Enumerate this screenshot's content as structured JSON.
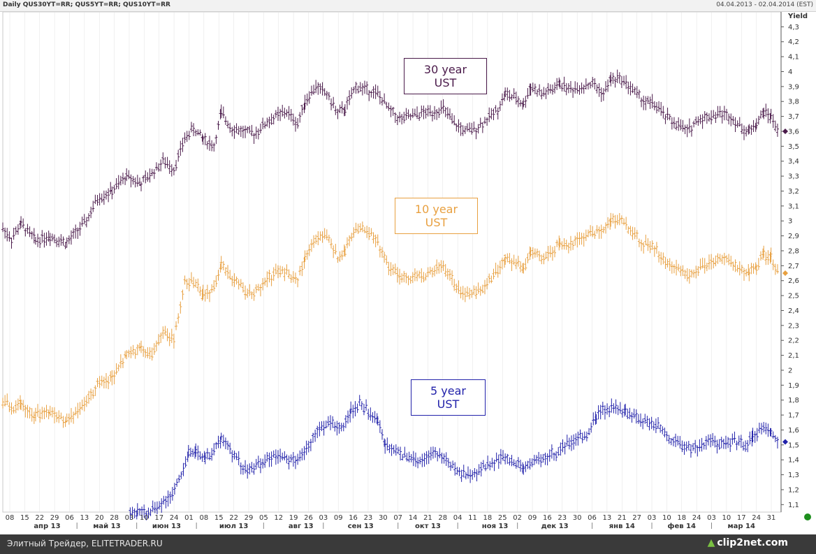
{
  "header": {
    "title": "Daily QUS30YT=RR; QUS5YT=RR; QUS10YT=RR",
    "range": "04.04.2013 - 02.04.2014 (EST)"
  },
  "footer": {
    "text": "Элитный Трейдер, ELITETRADER.RU",
    "logo": "clip2net.com"
  },
  "colors": {
    "us30": "#4a1a4a",
    "us10": "#e8a040",
    "us5": "#2222aa",
    "grid": "#e0e0e0",
    "axis": "#555555",
    "status_dot": "#1e8f1e"
  },
  "chart_data": {
    "type": "line",
    "style": "ohlc-bars",
    "title": "",
    "ylabel": "Yield",
    "ylim": [
      1.05,
      4.4
    ],
    "yticks": [
      "1,1",
      "1,2",
      "1,3",
      "1,4",
      "1,5",
      "1,6",
      "1,7",
      "1,8",
      "1,9",
      "2",
      "2,1",
      "2,2",
      "2,3",
      "2,4",
      "2,5",
      "2,6",
      "2,7",
      "2,8",
      "2,9",
      "3",
      "3,1",
      "3,2",
      "3,3",
      "3,4",
      "3,5",
      "3,6",
      "3,7",
      "3,8",
      "3,9",
      "4",
      "4,1",
      "4,2",
      "4,3"
    ],
    "ytick_values": [
      1.1,
      1.2,
      1.3,
      1.4,
      1.5,
      1.6,
      1.7,
      1.8,
      1.9,
      2.0,
      2.1,
      2.2,
      2.3,
      2.4,
      2.5,
      2.6,
      2.7,
      2.8,
      2.9,
      3.0,
      3.1,
      3.2,
      3.3,
      3.4,
      3.5,
      3.6,
      3.7,
      3.8,
      3.9,
      4.0,
      4.1,
      4.2,
      4.3
    ],
    "day_ticks": [
      "08",
      "15",
      "22",
      "29",
      "06",
      "13",
      "20",
      "28",
      "03",
      "10",
      "17",
      "24",
      "01",
      "08",
      "15",
      "22",
      "29",
      "05",
      "12",
      "19",
      "26",
      "03",
      "09",
      "16",
      "23",
      "30",
      "07",
      "14",
      "21",
      "28",
      "04",
      "11",
      "18",
      "25",
      "02",
      "09",
      "16",
      "23",
      "30",
      "06",
      "13",
      "21",
      "27",
      "03",
      "10",
      "18",
      "24",
      "03",
      "10",
      "17",
      "24",
      "31"
    ],
    "months": [
      "апр 13",
      "май 13",
      "июн 13",
      "июл 13",
      "авг 13",
      "сен 13",
      "окт 13",
      "ноя 13",
      "дек 13",
      "янв 14",
      "фев 14",
      "мар 14"
    ],
    "grid": true,
    "series": [
      {
        "name": "30 year UST",
        "color": "#4a1a4a",
        "points": [
          [
            0,
            2.95
          ],
          [
            12,
            2.88
          ],
          [
            25,
            2.98
          ],
          [
            45,
            2.87
          ],
          [
            65,
            2.9
          ],
          [
            88,
            2.85
          ],
          [
            100,
            2.92
          ],
          [
            115,
            3.0
          ],
          [
            130,
            3.15
          ],
          [
            150,
            3.2
          ],
          [
            170,
            3.3
          ],
          [
            190,
            3.25
          ],
          [
            205,
            3.32
          ],
          [
            220,
            3.4
          ],
          [
            235,
            3.35
          ],
          [
            250,
            3.55
          ],
          [
            262,
            3.62
          ],
          [
            275,
            3.55
          ],
          [
            290,
            3.5
          ],
          [
            300,
            3.72
          ],
          [
            315,
            3.62
          ],
          [
            330,
            3.6
          ],
          [
            345,
            3.58
          ],
          [
            360,
            3.65
          ],
          [
            375,
            3.7
          ],
          [
            390,
            3.73
          ],
          [
            405,
            3.65
          ],
          [
            415,
            3.8
          ],
          [
            430,
            3.9
          ],
          [
            445,
            3.85
          ],
          [
            460,
            3.72
          ],
          [
            470,
            3.75
          ],
          [
            485,
            3.9
          ],
          [
            500,
            3.88
          ],
          [
            515,
            3.85
          ],
          [
            530,
            3.75
          ],
          [
            545,
            3.68
          ],
          [
            560,
            3.7
          ],
          [
            575,
            3.72
          ],
          [
            590,
            3.73
          ],
          [
            605,
            3.75
          ],
          [
            620,
            3.65
          ],
          [
            635,
            3.6
          ],
          [
            650,
            3.62
          ],
          [
            665,
            3.68
          ],
          [
            680,
            3.75
          ],
          [
            690,
            3.85
          ],
          [
            705,
            3.82
          ],
          [
            715,
            3.78
          ],
          [
            725,
            3.9
          ],
          [
            740,
            3.85
          ],
          [
            755,
            3.88
          ],
          [
            765,
            3.92
          ],
          [
            780,
            3.88
          ],
          [
            795,
            3.9
          ],
          [
            810,
            3.92
          ],
          [
            825,
            3.85
          ],
          [
            835,
            3.95
          ],
          [
            850,
            3.95
          ],
          [
            865,
            3.88
          ],
          [
            880,
            3.8
          ],
          [
            895,
            3.78
          ],
          [
            910,
            3.7
          ],
          [
            925,
            3.65
          ],
          [
            940,
            3.6
          ],
          [
            955,
            3.68
          ],
          [
            970,
            3.7
          ],
          [
            985,
            3.72
          ],
          [
            1000,
            3.7
          ],
          [
            1015,
            3.62
          ],
          [
            1025,
            3.6
          ],
          [
            1035,
            3.65
          ],
          [
            1045,
            3.73
          ],
          [
            1055,
            3.7
          ],
          [
            1065,
            3.6
          ]
        ],
        "last_value": 3.6
      },
      {
        "name": "10 year UST",
        "color": "#e8a040",
        "points": [
          [
            0,
            1.8
          ],
          [
            12,
            1.75
          ],
          [
            25,
            1.78
          ],
          [
            45,
            1.7
          ],
          [
            65,
            1.72
          ],
          [
            88,
            1.67
          ],
          [
            100,
            1.72
          ],
          [
            115,
            1.8
          ],
          [
            130,
            1.9
          ],
          [
            150,
            1.95
          ],
          [
            170,
            2.1
          ],
          [
            190,
            2.15
          ],
          [
            205,
            2.1
          ],
          [
            220,
            2.25
          ],
          [
            235,
            2.2
          ],
          [
            250,
            2.6
          ],
          [
            262,
            2.58
          ],
          [
            275,
            2.5
          ],
          [
            290,
            2.55
          ],
          [
            300,
            2.72
          ],
          [
            315,
            2.62
          ],
          [
            330,
            2.55
          ],
          [
            345,
            2.5
          ],
          [
            360,
            2.6
          ],
          [
            375,
            2.65
          ],
          [
            390,
            2.65
          ],
          [
            405,
            2.6
          ],
          [
            415,
            2.75
          ],
          [
            430,
            2.88
          ],
          [
            445,
            2.9
          ],
          [
            460,
            2.75
          ],
          [
            470,
            2.8
          ],
          [
            485,
            2.95
          ],
          [
            500,
            2.95
          ],
          [
            515,
            2.85
          ],
          [
            530,
            2.7
          ],
          [
            545,
            2.62
          ],
          [
            560,
            2.62
          ],
          [
            575,
            2.63
          ],
          [
            590,
            2.65
          ],
          [
            605,
            2.7
          ],
          [
            620,
            2.58
          ],
          [
            635,
            2.5
          ],
          [
            650,
            2.52
          ],
          [
            665,
            2.58
          ],
          [
            680,
            2.68
          ],
          [
            690,
            2.75
          ],
          [
            705,
            2.72
          ],
          [
            715,
            2.68
          ],
          [
            725,
            2.8
          ],
          [
            740,
            2.75
          ],
          [
            755,
            2.8
          ],
          [
            765,
            2.85
          ],
          [
            780,
            2.83
          ],
          [
            795,
            2.88
          ],
          [
            810,
            2.92
          ],
          [
            825,
            2.95
          ],
          [
            835,
            3.0
          ],
          [
            850,
            3.0
          ],
          [
            865,
            2.92
          ],
          [
            880,
            2.85
          ],
          [
            895,
            2.82
          ],
          [
            910,
            2.72
          ],
          [
            925,
            2.68
          ],
          [
            940,
            2.62
          ],
          [
            955,
            2.68
          ],
          [
            970,
            2.72
          ],
          [
            985,
            2.75
          ],
          [
            1000,
            2.72
          ],
          [
            1015,
            2.68
          ],
          [
            1025,
            2.65
          ],
          [
            1035,
            2.7
          ],
          [
            1045,
            2.78
          ],
          [
            1055,
            2.75
          ],
          [
            1065,
            2.65
          ]
        ],
        "last_value": 2.65
      },
      {
        "name": "5 year UST",
        "color": "#2222aa",
        "points": [
          [
            175,
            1.05
          ],
          [
            185,
            1.05
          ],
          [
            200,
            1.05
          ],
          [
            215,
            1.1
          ],
          [
            230,
            1.15
          ],
          [
            245,
            1.3
          ],
          [
            255,
            1.45
          ],
          [
            265,
            1.45
          ],
          [
            278,
            1.42
          ],
          [
            290,
            1.45
          ],
          [
            300,
            1.55
          ],
          [
            315,
            1.45
          ],
          [
            330,
            1.35
          ],
          [
            345,
            1.33
          ],
          [
            360,
            1.4
          ],
          [
            375,
            1.43
          ],
          [
            390,
            1.4
          ],
          [
            405,
            1.4
          ],
          [
            420,
            1.5
          ],
          [
            435,
            1.6
          ],
          [
            450,
            1.65
          ],
          [
            465,
            1.6
          ],
          [
            478,
            1.72
          ],
          [
            490,
            1.78
          ],
          [
            502,
            1.72
          ],
          [
            515,
            1.68
          ],
          [
            525,
            1.5
          ],
          [
            540,
            1.45
          ],
          [
            555,
            1.42
          ],
          [
            570,
            1.4
          ],
          [
            585,
            1.42
          ],
          [
            600,
            1.45
          ],
          [
            615,
            1.38
          ],
          [
            630,
            1.3
          ],
          [
            645,
            1.3
          ],
          [
            660,
            1.35
          ],
          [
            675,
            1.38
          ],
          [
            690,
            1.42
          ],
          [
            705,
            1.38
          ],
          [
            715,
            1.35
          ],
          [
            730,
            1.38
          ],
          [
            745,
            1.42
          ],
          [
            760,
            1.45
          ],
          [
            775,
            1.5
          ],
          [
            790,
            1.55
          ],
          [
            805,
            1.58
          ],
          [
            815,
            1.7
          ],
          [
            830,
            1.75
          ],
          [
            845,
            1.75
          ],
          [
            855,
            1.72
          ],
          [
            870,
            1.68
          ],
          [
            885,
            1.65
          ],
          [
            900,
            1.62
          ],
          [
            915,
            1.55
          ],
          [
            930,
            1.5
          ],
          [
            945,
            1.48
          ],
          [
            960,
            1.5
          ],
          [
            975,
            1.52
          ],
          [
            990,
            1.5
          ],
          [
            1005,
            1.52
          ],
          [
            1020,
            1.5
          ],
          [
            1030,
            1.55
          ],
          [
            1045,
            1.62
          ],
          [
            1055,
            1.6
          ],
          [
            1065,
            1.52
          ]
        ],
        "last_value": 1.52
      }
    ]
  }
}
